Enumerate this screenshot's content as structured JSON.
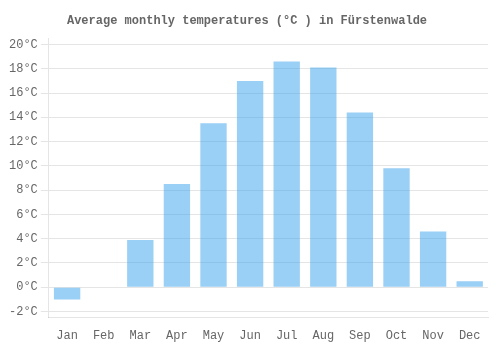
{
  "chart_data": {
    "type": "bar",
    "title": "Average monthly temperatures (°C ) in Fürstenwalde",
    "categories": [
      "Jan",
      "Feb",
      "Mar",
      "Apr",
      "May",
      "Jun",
      "Jul",
      "Aug",
      "Sep",
      "Oct",
      "Nov",
      "Dec"
    ],
    "values": [
      -1.0,
      0.0,
      3.9,
      8.5,
      13.5,
      17.0,
      18.6,
      18.1,
      14.4,
      9.8,
      4.6,
      0.5
    ],
    "ylim": [
      -2.5,
      20.5
    ],
    "yticks": [
      {
        "value": -2,
        "label": "-2°C"
      },
      {
        "value": 0,
        "label": "0°C"
      },
      {
        "value": 2,
        "label": "2°C"
      },
      {
        "value": 4,
        "label": "4°C"
      },
      {
        "value": 6,
        "label": "6°C"
      },
      {
        "value": 8,
        "label": "8°C"
      },
      {
        "value": 10,
        "label": "10°C"
      },
      {
        "value": 12,
        "label": "12°C"
      },
      {
        "value": 14,
        "label": "14°C"
      },
      {
        "value": 16,
        "label": "16°C"
      },
      {
        "value": 18,
        "label": "18°C"
      },
      {
        "value": 20,
        "label": "20°C"
      }
    ],
    "grid": true
  }
}
